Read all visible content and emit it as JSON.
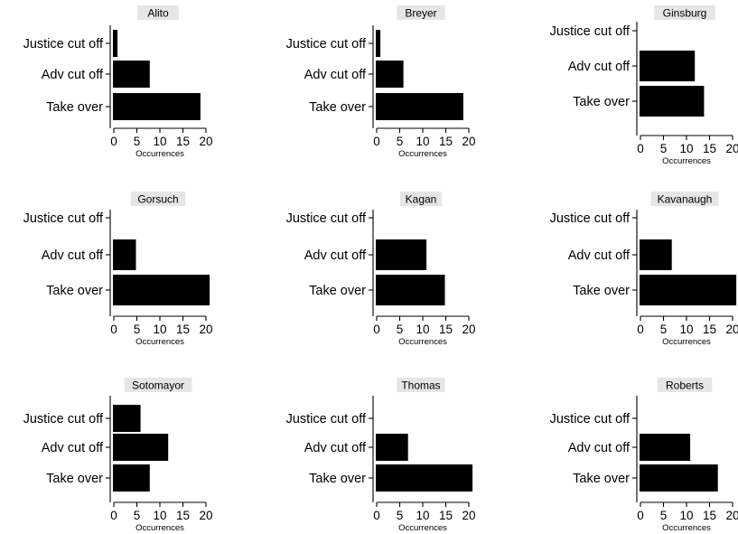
{
  "chart_data": [
    {
      "type": "bar",
      "orientation": "horizontal",
      "title": "Alito",
      "categories": [
        "Justice cut off",
        "Adv cut off",
        "Take over"
      ],
      "values": [
        1,
        8,
        19
      ],
      "xlabel": "Occurrences",
      "xticks": [
        0,
        5,
        10,
        15,
        20
      ],
      "xlim": [
        0,
        20
      ]
    },
    {
      "type": "bar",
      "orientation": "horizontal",
      "title": "Breyer",
      "categories": [
        "Justice cut off",
        "Adv cut off",
        "Take over"
      ],
      "values": [
        1,
        6,
        19
      ],
      "xlabel": "Occurrences",
      "xticks": [
        0,
        5,
        10,
        15,
        20
      ],
      "xlim": [
        0,
        20
      ]
    },
    {
      "type": "bar",
      "orientation": "horizontal",
      "title": "Ginsburg",
      "categories": [
        "Justice cut off",
        "Adv cut off",
        "Take over"
      ],
      "values": [
        0,
        12,
        14
      ],
      "xlabel": "Occurrences",
      "xticks": [
        0,
        5,
        10,
        15,
        20
      ],
      "xlim": [
        0,
        20
      ]
    },
    {
      "type": "bar",
      "orientation": "horizontal",
      "title": "Gorsuch",
      "categories": [
        "Justice cut off",
        "Adv cut off",
        "Take over"
      ],
      "values": [
        0,
        5,
        21
      ],
      "xlabel": "Occurrences",
      "xticks": [
        0,
        5,
        10,
        15,
        20
      ],
      "xlim": [
        0,
        20
      ]
    },
    {
      "type": "bar",
      "orientation": "horizontal",
      "title": "Kagan",
      "categories": [
        "Justice cut off",
        "Adv cut off",
        "Take over"
      ],
      "values": [
        0,
        11,
        15
      ],
      "xlabel": "Occurrences",
      "xticks": [
        0,
        5,
        10,
        15,
        20
      ],
      "xlim": [
        0,
        20
      ]
    },
    {
      "type": "bar",
      "orientation": "horizontal",
      "title": "Kavanaugh",
      "categories": [
        "Justice cut off",
        "Adv cut off",
        "Take over"
      ],
      "values": [
        0,
        7,
        21
      ],
      "xlabel": "Occurrences",
      "xticks": [
        0,
        5,
        10,
        15,
        20
      ],
      "xlim": [
        0,
        20
      ]
    },
    {
      "type": "bar",
      "orientation": "horizontal",
      "title": "Sotomayor",
      "categories": [
        "Justice cut off",
        "Adv cut off",
        "Take over"
      ],
      "values": [
        6,
        12,
        8
      ],
      "xlabel": "Occurrences",
      "xticks": [
        0,
        5,
        10,
        15,
        20
      ],
      "xlim": [
        0,
        20
      ]
    },
    {
      "type": "bar",
      "orientation": "horizontal",
      "title": "Thomas",
      "categories": [
        "Justice cut off",
        "Adv cut off",
        "Take over"
      ],
      "values": [
        0,
        7,
        21
      ],
      "xlabel": "Occurrences",
      "xticks": [
        0,
        5,
        10,
        15,
        20
      ],
      "xlim": [
        0,
        20
      ]
    },
    {
      "type": "bar",
      "orientation": "horizontal",
      "title": "Roberts",
      "categories": [
        "Justice cut off",
        "Adv cut off",
        "Take over"
      ],
      "values": [
        0,
        11,
        17
      ],
      "xlabel": "Occurrences",
      "xticks": [
        0,
        5,
        10,
        15,
        20
      ],
      "xlim": [
        0,
        20
      ]
    }
  ]
}
